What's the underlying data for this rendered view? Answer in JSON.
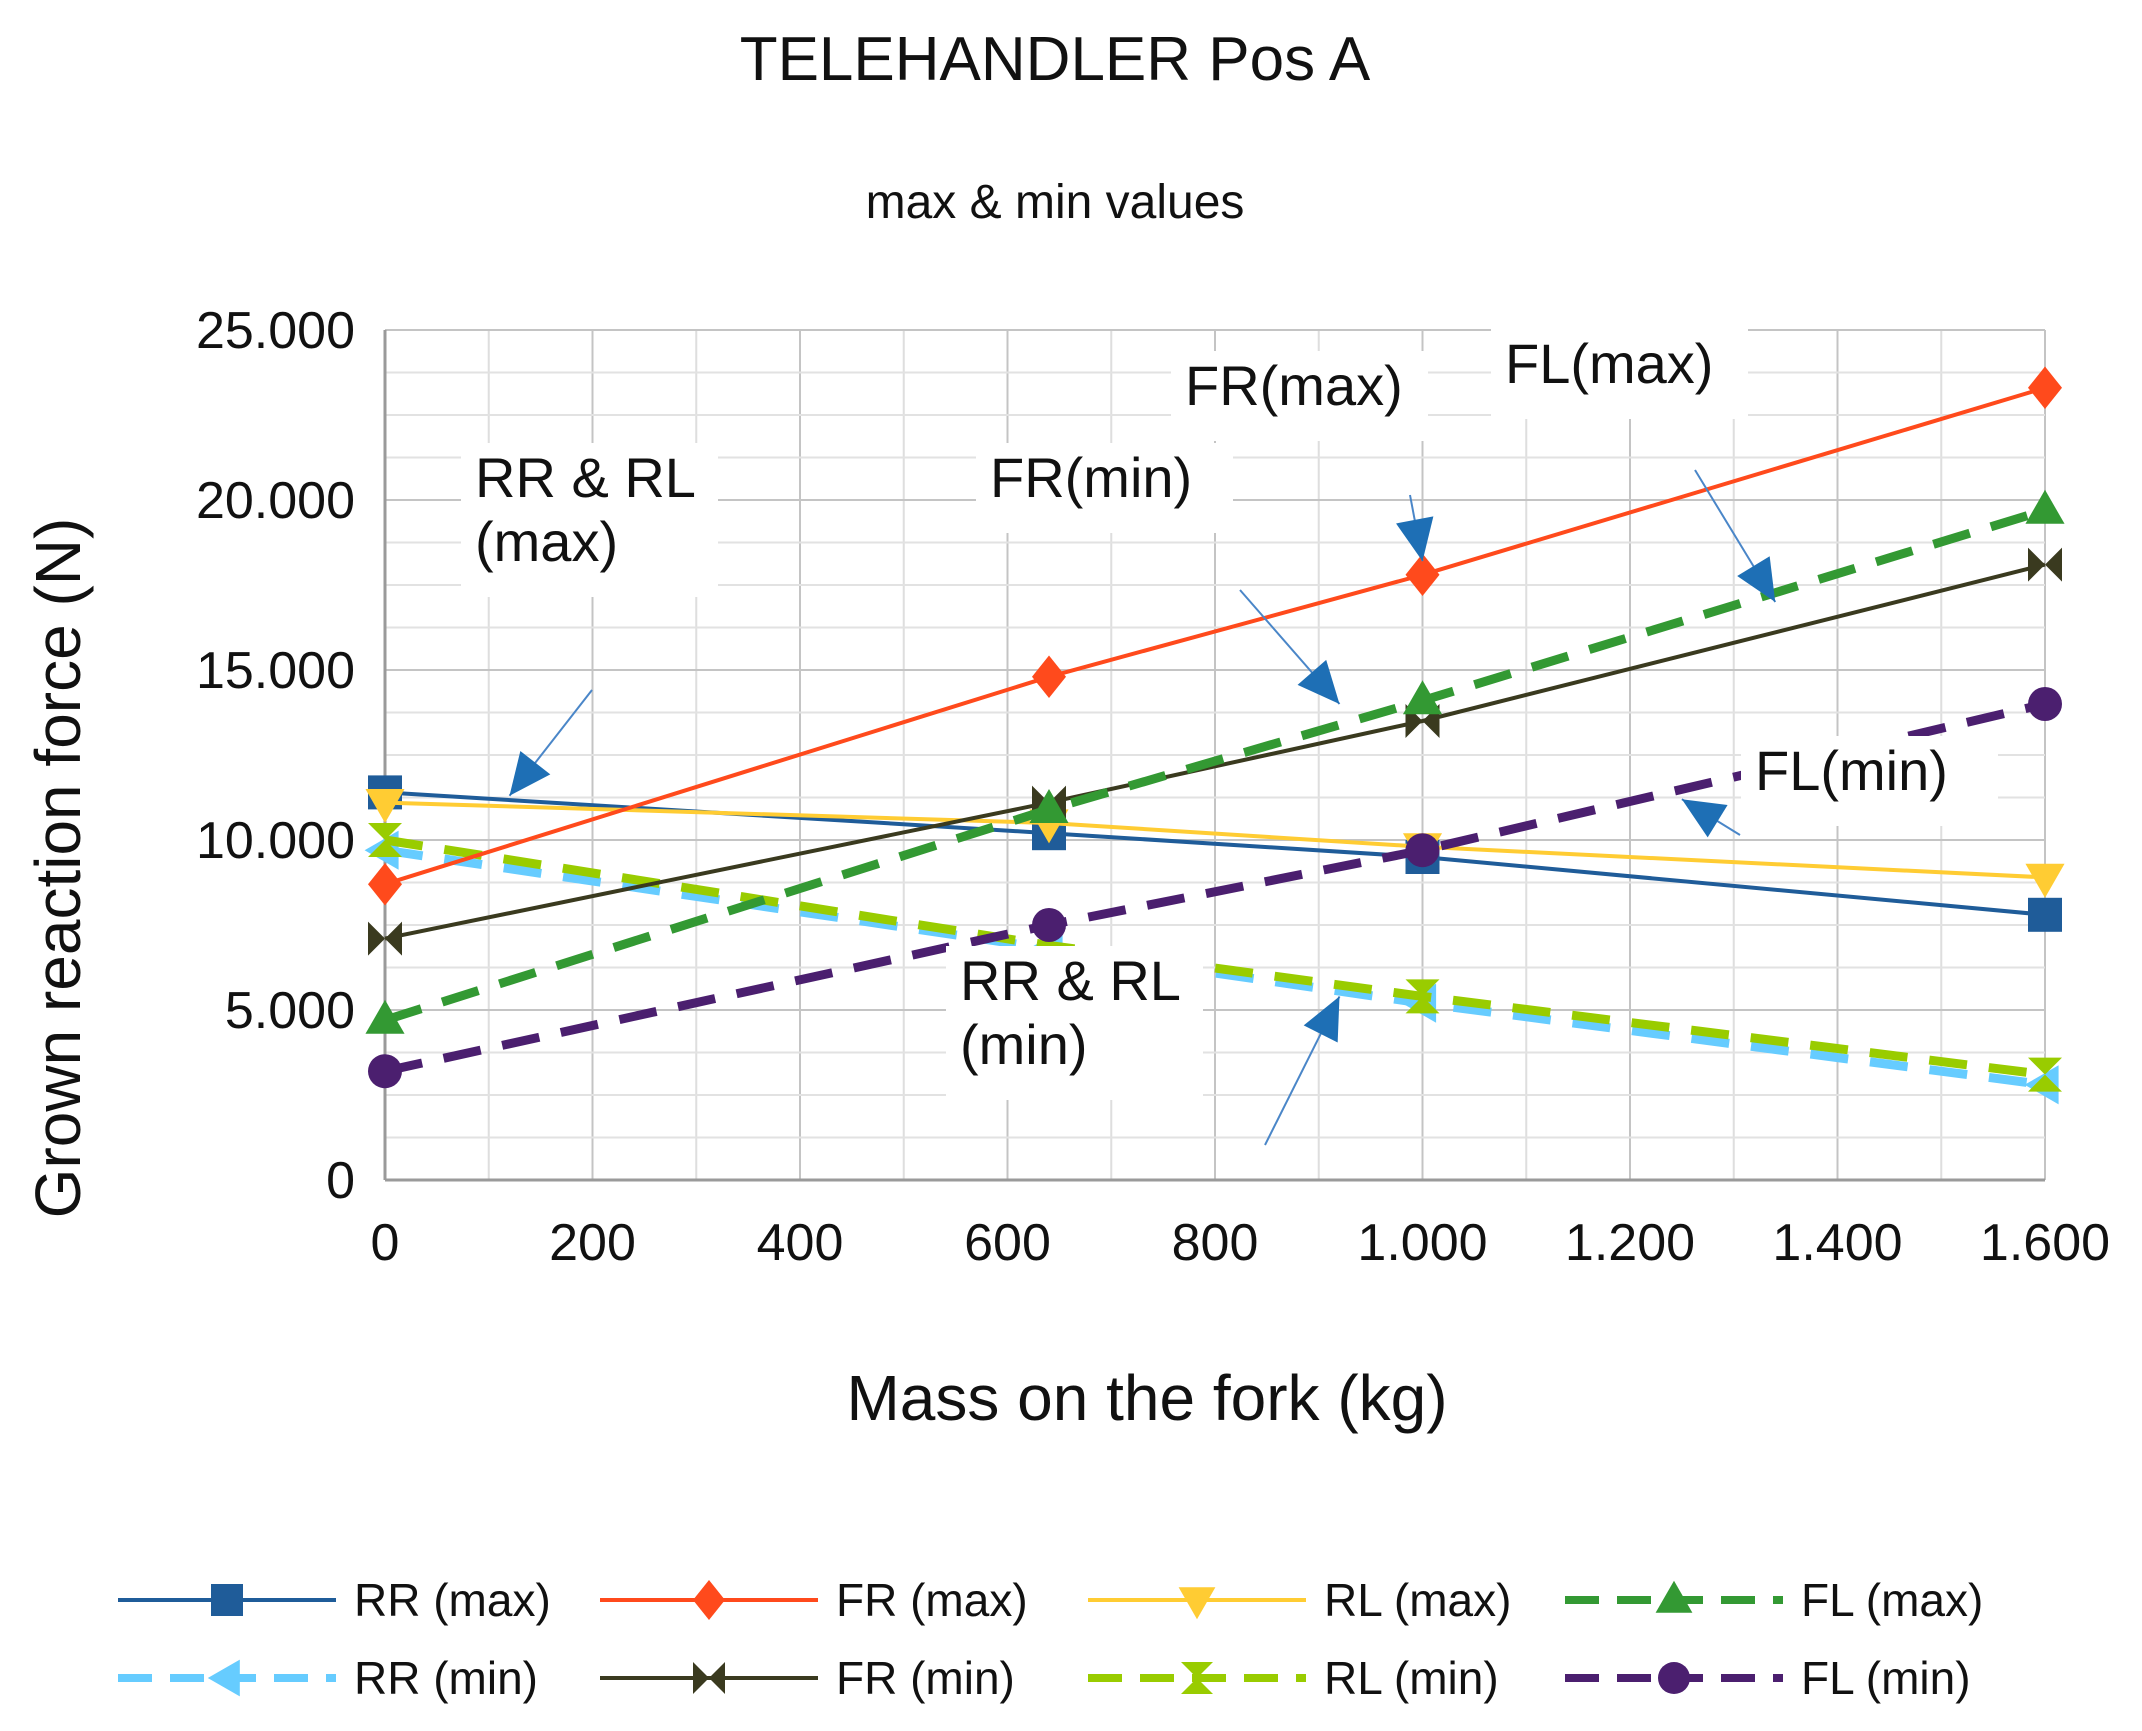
{
  "chart_data": {
    "type": "line",
    "title": "TELEHANDLER  Pos A",
    "subtitle": "max & min values",
    "xlabel": "Mass  on the fork (kg)",
    "ylabel": "Grown reaction force (N)",
    "xlim": [
      0,
      1600
    ],
    "ylim": [
      0,
      25000
    ],
    "x_ticks": [
      "0",
      "200",
      "400",
      "600",
      "800",
      "1.000",
      "1.200",
      "1.400",
      "1.600"
    ],
    "y_ticks": [
      "0",
      "5.000",
      "10.000",
      "15.000",
      "20.000",
      "25.000"
    ],
    "x_tick_values": [
      0,
      200,
      400,
      600,
      800,
      1000,
      1200,
      1400,
      1600
    ],
    "y_tick_values": [
      0,
      5000,
      10000,
      15000,
      20000,
      25000
    ],
    "grid": true,
    "x": [
      0,
      640,
      1000,
      1600
    ],
    "series": [
      {
        "name": "RR (max)",
        "values": [
          11400,
          10200,
          9500,
          7800
        ],
        "color": "#1f5c99",
        "dash": "solid",
        "marker": "square"
      },
      {
        "name": "FR (max)",
        "values": [
          8700,
          14800,
          17800,
          23300
        ],
        "color": "#ff4a1c",
        "dash": "solid",
        "marker": "diamond"
      },
      {
        "name": "RL (max)",
        "values": [
          11100,
          10500,
          9800,
          8900
        ],
        "color": "#ffcc33",
        "dash": "solid",
        "marker": "triangle-down"
      },
      {
        "name": "FL (max)",
        "values": [
          4700,
          10900,
          14100,
          19700
        ],
        "color": "#339933",
        "dash": "dashed",
        "marker": "triangle-up"
      },
      {
        "name": "RR (min)",
        "values": [
          9700,
          6800,
          5200,
          2800
        ],
        "color": "#66ccff",
        "dash": "dashed",
        "marker": "triangle-left"
      },
      {
        "name": "FR (min)",
        "values": [
          7100,
          11100,
          13500,
          18100
        ],
        "color": "#3a3a1f",
        "dash": "solid",
        "marker": "bowtie"
      },
      {
        "name": "RL (min)",
        "values": [
          10000,
          6900,
          5400,
          3100
        ],
        "color": "#99cc00",
        "dash": "dashed",
        "marker": "hourglass"
      },
      {
        "name": "FL (min)",
        "values": [
          3200,
          7500,
          9700,
          14000
        ],
        "color": "#4b1f6f",
        "dash": "dashed",
        "marker": "circle"
      }
    ],
    "legend_position": "bottom",
    "annotations": [
      {
        "lines": [
          "RR & RL",
          "(max)"
        ],
        "target_x": 120,
        "target_y": 11300
      },
      {
        "lines": [
          "FR(max)"
        ],
        "target_x": 1000,
        "target_y": 18200
      },
      {
        "lines": [
          "FL(max)"
        ],
        "target_x": 1340,
        "target_y": 17000
      },
      {
        "lines": [
          "FR(min)"
        ],
        "target_x": 920,
        "target_y": 14000
      },
      {
        "lines": [
          "FL(min)"
        ],
        "target_x": 1250,
        "target_y": 11200
      },
      {
        "lines": [
          "RR & RL",
          "(min)"
        ],
        "target_x": 920,
        "target_y": 5400
      }
    ]
  }
}
